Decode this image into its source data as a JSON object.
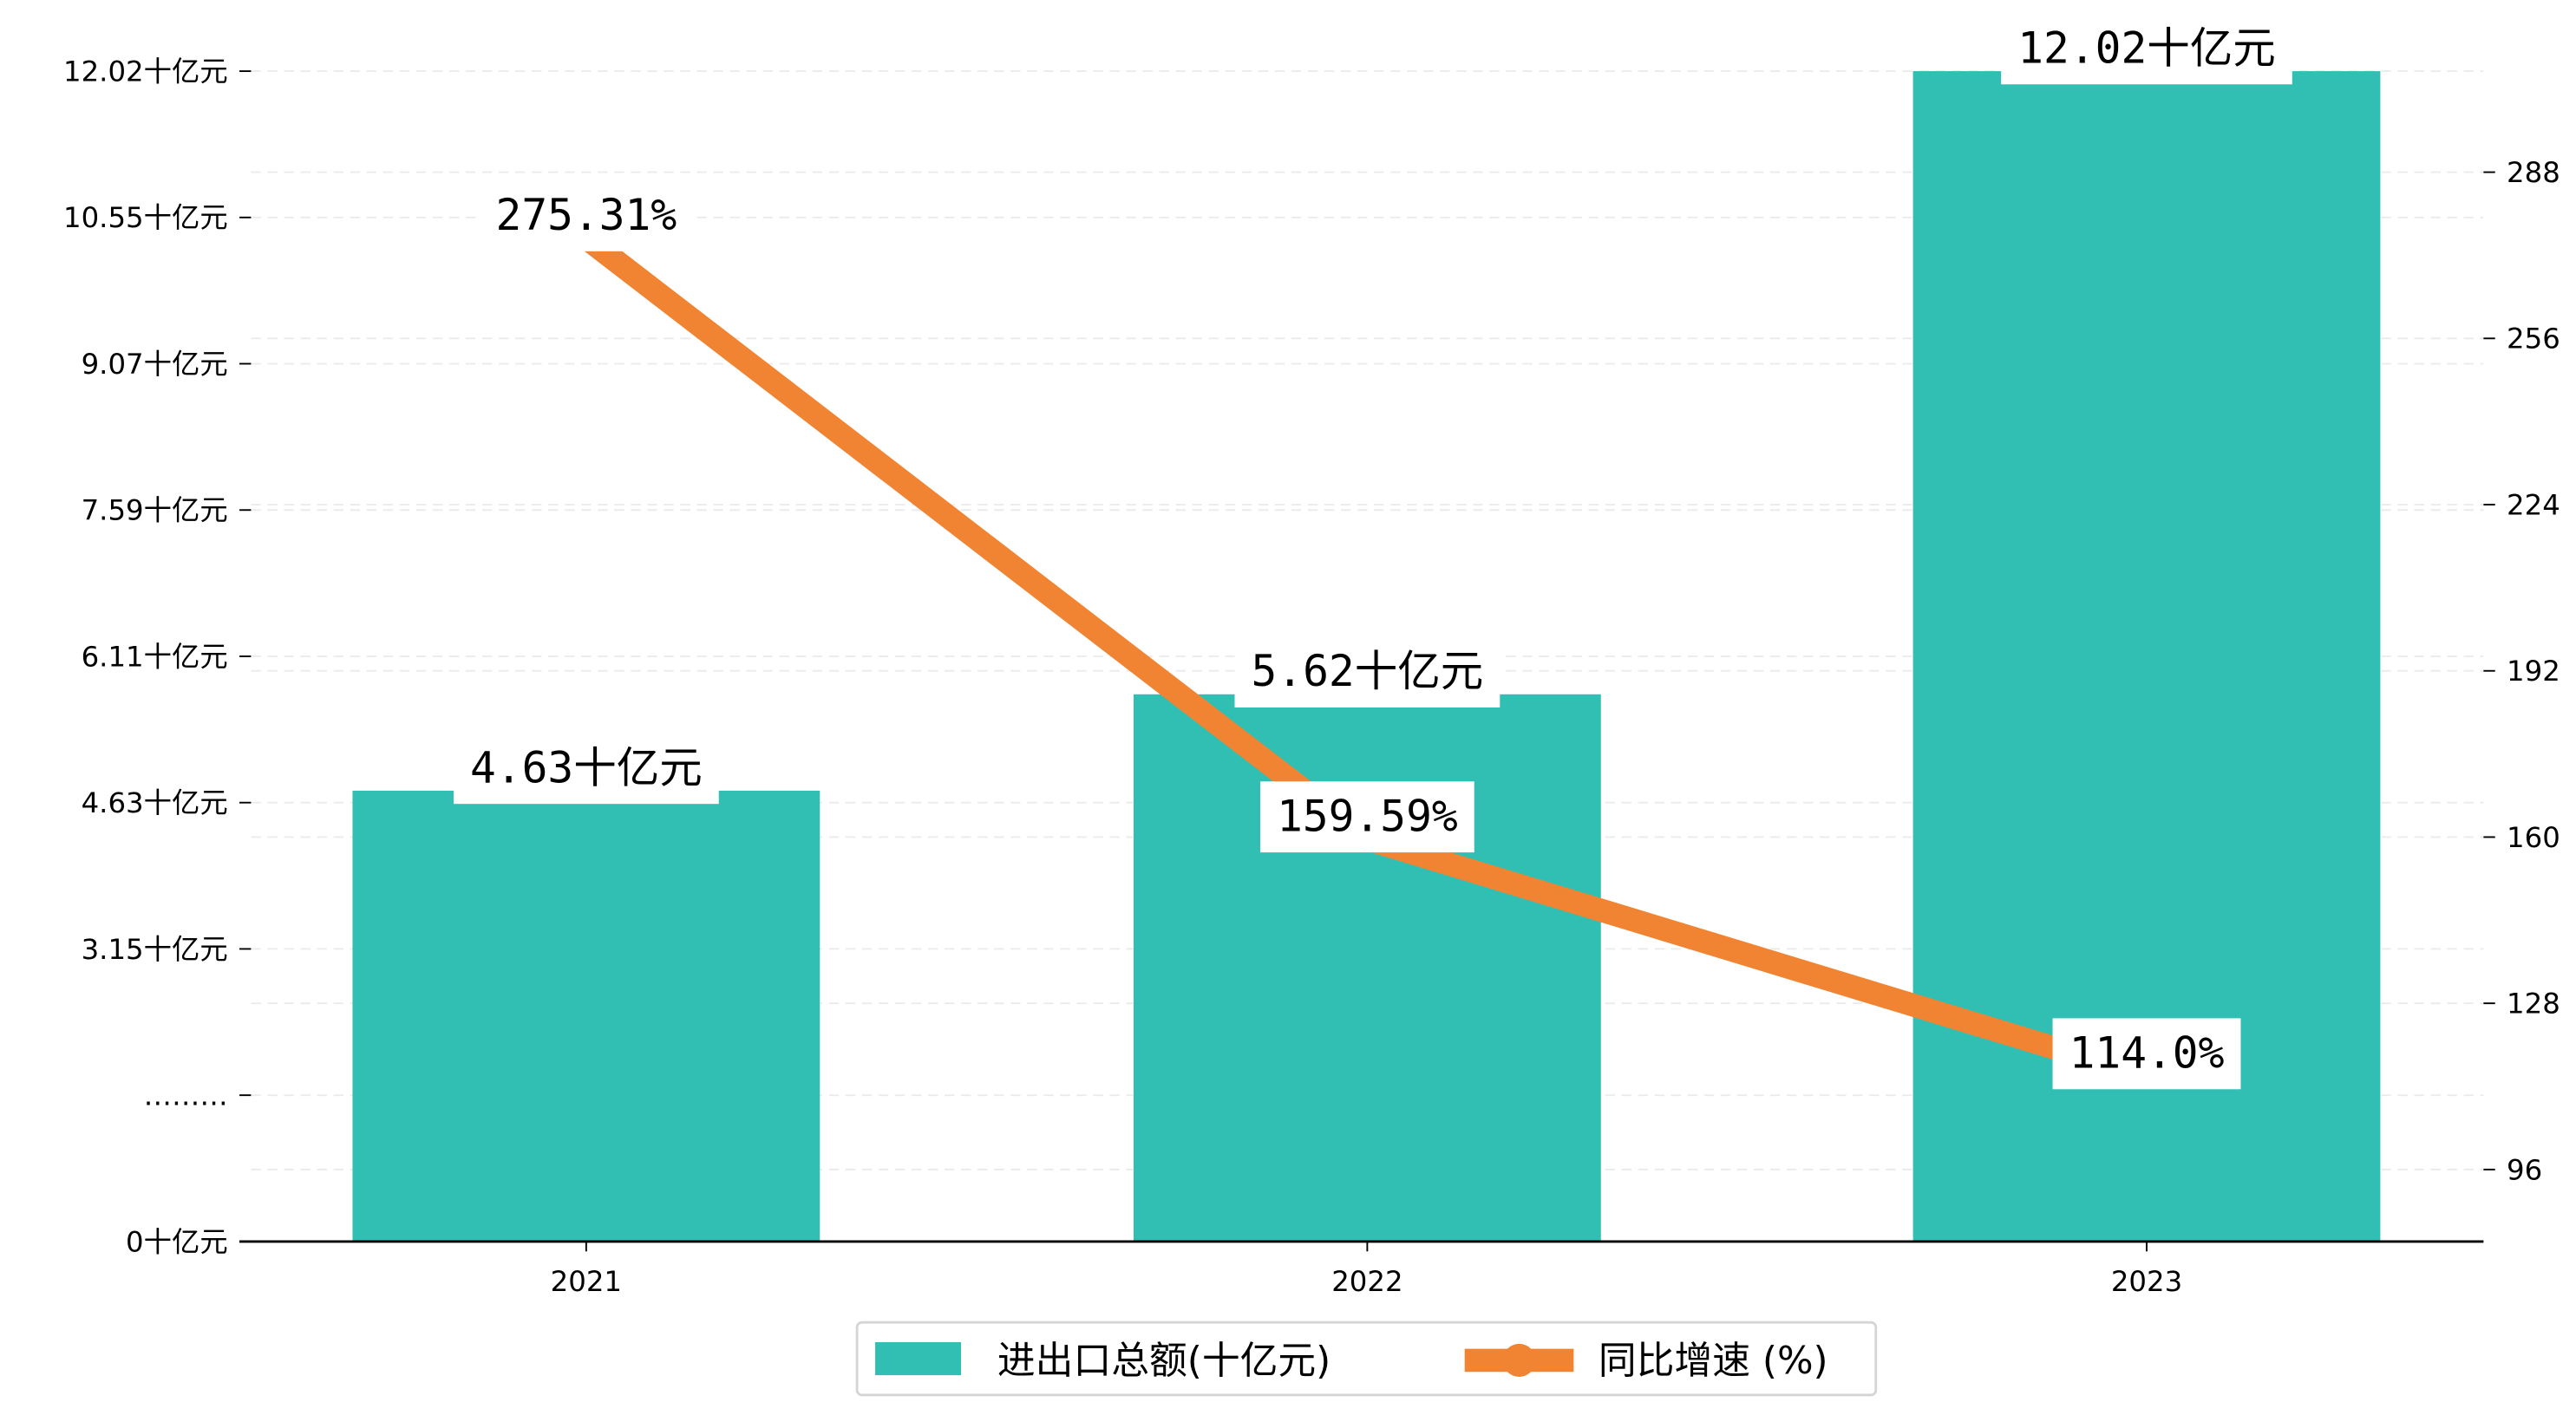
{
  "chart_data": {
    "type": "bar+line",
    "title": "",
    "categories": [
      "2021",
      "2022",
      "2023"
    ],
    "series": [
      {
        "name": "进出口总额(十亿元)",
        "type": "bar",
        "axis": "left",
        "values": [
          4.63,
          5.62,
          12.02
        ],
        "labels": [
          "4.63十亿元",
          "5.62十亿元",
          "12.02十亿元"
        ],
        "color": "#31bfb3"
      },
      {
        "name": "同比增速 (%)",
        "type": "line",
        "axis": "right",
        "values": [
          275.31,
          159.59,
          114.0
        ],
        "labels": [
          "275.31%",
          "159.59%",
          "114.0%"
        ],
        "color": "#f08432"
      }
    ],
    "left_axis": {
      "ticks": [
        "0十亿元",
        "………",
        "3.15十亿元",
        "4.63十亿元",
        "6.11十亿元",
        "7.59十亿元",
        "9.07十亿元",
        "10.55十亿元",
        "12.02十亿元"
      ],
      "ylim": [
        0,
        12.02
      ]
    },
    "right_axis": {
      "ticks": [
        96,
        128,
        160,
        192,
        224,
        256,
        288
      ],
      "ylim": [
        82,
        303
      ]
    },
    "grid": true,
    "legend_position": "bottom-center"
  }
}
